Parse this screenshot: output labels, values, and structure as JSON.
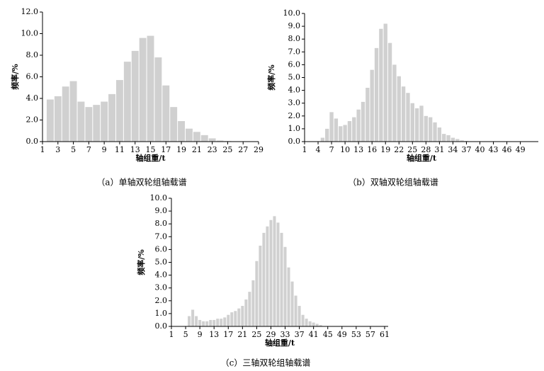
{
  "chart_data": [
    {
      "type": "bar",
      "caption": "（a）单轴双轮组轴载谱",
      "xlabel": "轴组重/t",
      "ylabel": "频率/%",
      "color": "#d0d0d0",
      "x": [
        2,
        3,
        4,
        5,
        6,
        7,
        8,
        9,
        10,
        11,
        12,
        13,
        14,
        15,
        16,
        17,
        18,
        19,
        20,
        21,
        22,
        23,
        24,
        25
      ],
      "values": [
        3.9,
        4.2,
        5.1,
        5.6,
        3.7,
        3.2,
        3.4,
        3.7,
        4.4,
        5.7,
        7.4,
        8.4,
        9.6,
        9.8,
        7.8,
        5.2,
        3.2,
        1.9,
        1.2,
        0.9,
        0.6,
        0.3,
        0.1,
        0.05
      ],
      "xlim": [
        1,
        29
      ],
      "xticks": [
        1,
        3,
        5,
        7,
        9,
        11,
        13,
        15,
        17,
        19,
        21,
        23,
        25,
        27,
        29
      ],
      "ylim": [
        0,
        12
      ],
      "yticks": [
        {
          "value": 0,
          "label": "0.0"
        },
        {
          "value": 2,
          "label": "2.0"
        },
        {
          "value": 4,
          "label": "4.0"
        },
        {
          "value": 6,
          "label": "6.0"
        },
        {
          "value": 8,
          "label": "8.0"
        },
        {
          "value": 10,
          "label": "10.0"
        },
        {
          "value": 12,
          "label": "12.0"
        }
      ]
    },
    {
      "type": "bar",
      "caption": "（b）双轴双轮组轴载谱",
      "xlabel": "轴组重/t",
      "ylabel": "频率/%",
      "color": "#d0d0d0",
      "x": [
        5,
        6,
        7,
        8,
        9,
        10,
        11,
        12,
        13,
        14,
        15,
        16,
        17,
        18,
        19,
        20,
        21,
        22,
        23,
        24,
        25,
        26,
        27,
        28,
        29,
        30,
        31,
        32,
        33,
        34,
        35,
        36,
        37
      ],
      "values": [
        0.3,
        1.0,
        2.3,
        1.8,
        1.2,
        1.3,
        1.6,
        1.9,
        2.5,
        3.1,
        4.2,
        5.6,
        7.3,
        8.8,
        9.2,
        7.7,
        6.0,
        5.1,
        4.3,
        3.8,
        3.0,
        2.6,
        2.8,
        2.0,
        1.9,
        1.5,
        1.1,
        0.6,
        0.5,
        0.3,
        0.2,
        0.1,
        0.05
      ],
      "xlim": [
        1,
        53
      ],
      "xticks": [
        1,
        4,
        7,
        10,
        13,
        16,
        19,
        22,
        25,
        28,
        31,
        34,
        37,
        40,
        43,
        46,
        49
      ],
      "ylim": [
        0,
        10
      ],
      "yticks": [
        {
          "value": 0,
          "label": "0.0"
        },
        {
          "value": 1,
          "label": "1.0"
        },
        {
          "value": 2,
          "label": "2.0"
        },
        {
          "value": 3,
          "label": "3.0"
        },
        {
          "value": 4,
          "label": "4.0"
        },
        {
          "value": 5,
          "label": "5.0"
        },
        {
          "value": 6,
          "label": "6.0"
        },
        {
          "value": 7,
          "label": "7.0"
        },
        {
          "value": 8,
          "label": "8.0"
        },
        {
          "value": 9,
          "label": "9.0"
        },
        {
          "value": 10,
          "label": "10.0"
        }
      ]
    },
    {
      "type": "bar",
      "caption": "（c）三轴双轮组轴载谱",
      "xlabel": "轴组重/t",
      "ylabel": "频率/%",
      "color": "#d0d0d0",
      "x": [
        6,
        7,
        8,
        9,
        10,
        11,
        12,
        13,
        14,
        15,
        16,
        17,
        18,
        19,
        20,
        21,
        22,
        23,
        24,
        25,
        26,
        27,
        28,
        29,
        30,
        31,
        32,
        33,
        34,
        35,
        36,
        37,
        38,
        39,
        40,
        41,
        42,
        43
      ],
      "values": [
        0.8,
        1.3,
        0.8,
        0.5,
        0.4,
        0.4,
        0.5,
        0.5,
        0.6,
        0.6,
        0.7,
        0.9,
        1.1,
        1.2,
        1.4,
        1.6,
        2.1,
        2.7,
        3.6,
        5.1,
        6.3,
        7.3,
        7.8,
        8.3,
        8.6,
        8.1,
        7.3,
        6.2,
        4.6,
        3.5,
        2.4,
        1.6,
        0.9,
        0.6,
        0.4,
        0.3,
        0.2,
        0.1
      ],
      "xlim": [
        1,
        62
      ],
      "xticks": [
        1,
        5,
        9,
        13,
        17,
        21,
        25,
        29,
        33,
        37,
        41,
        45,
        49,
        53,
        57,
        61
      ],
      "ylim": [
        0,
        10
      ],
      "yticks": [
        {
          "value": 0,
          "label": "0.0"
        },
        {
          "value": 1,
          "label": "1.0"
        },
        {
          "value": 2,
          "label": "2.0"
        },
        {
          "value": 3,
          "label": "3.0"
        },
        {
          "value": 4,
          "label": "4.0"
        },
        {
          "value": 5,
          "label": "5.0"
        },
        {
          "value": 6,
          "label": "6.0"
        },
        {
          "value": 7,
          "label": "7.0"
        },
        {
          "value": 8,
          "label": "8.0"
        },
        {
          "value": 9,
          "label": "9.0"
        },
        {
          "value": 10,
          "label": "10.0"
        }
      ]
    }
  ]
}
